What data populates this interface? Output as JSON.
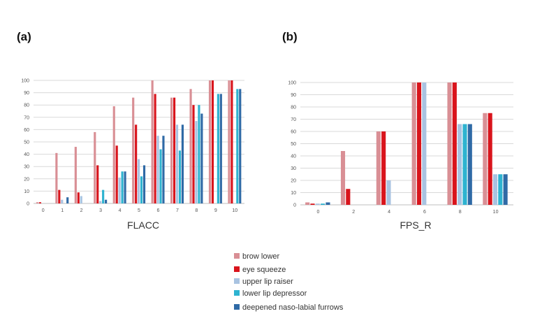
{
  "panel_labels": [
    "(a)",
    "(b)"
  ],
  "legend": {
    "items": [
      {
        "label": "brow lower",
        "color": "#d98f95"
      },
      {
        "label": "eye squeeze",
        "color": "#d9141c"
      },
      {
        "label": "upper lip raiser",
        "color": "#a9c3e1"
      },
      {
        "label": "lower lip depressor",
        "color": "#2eb3d0"
      },
      {
        "label": "deepened naso-labial furrows",
        "color": "#2f6aa6"
      }
    ]
  },
  "chart_data": [
    {
      "type": "bar",
      "title": "",
      "xlabel": "FLACC",
      "ylabel": "",
      "ylim": [
        0,
        100
      ],
      "yticks": [
        0,
        10,
        20,
        30,
        40,
        50,
        60,
        70,
        80,
        90,
        100
      ],
      "grid": true,
      "categories": [
        "0",
        "1",
        "2",
        "3",
        "4",
        "5",
        "6",
        "7",
        "8",
        "9",
        "10"
      ],
      "series": [
        {
          "name": "brow lower",
          "values": [
            1,
            41,
            46,
            58,
            79,
            86,
            100,
            86,
            93,
            100,
            100
          ]
        },
        {
          "name": "eye squeeze",
          "values": [
            1,
            11,
            9,
            31,
            47,
            64,
            89,
            86,
            80,
            100,
            100
          ]
        },
        {
          "name": "upper lip raiser",
          "values": [
            0,
            3,
            6,
            2,
            21,
            36,
            55,
            64,
            67,
            0,
            0
          ]
        },
        {
          "name": "lower lip depressor",
          "values": [
            0,
            0,
            0,
            11,
            26,
            22,
            44,
            43,
            80,
            89,
            93
          ]
        },
        {
          "name": "deepened naso-labial furrows",
          "values": [
            0,
            5,
            0,
            3,
            26,
            31,
            55,
            64,
            73,
            89,
            93
          ]
        }
      ]
    },
    {
      "type": "bar",
      "title": "",
      "xlabel": "FPS_R",
      "ylabel": "",
      "ylim": [
        0,
        100
      ],
      "yticks": [
        0,
        10,
        20,
        30,
        40,
        50,
        60,
        70,
        80,
        90,
        100
      ],
      "grid": true,
      "categories": [
        "0",
        "2",
        "4",
        "6",
        "8",
        "10"
      ],
      "series": [
        {
          "name": "brow lower",
          "values": [
            2,
            44,
            60,
            100,
            100,
            75
          ]
        },
        {
          "name": "eye squeeze",
          "values": [
            1,
            13,
            60,
            100,
            100,
            75
          ]
        },
        {
          "name": "upper lip raiser",
          "values": [
            1,
            0,
            20,
            100,
            66,
            25
          ]
        },
        {
          "name": "lower lip depressor",
          "values": [
            1,
            0,
            0,
            0,
            66,
            25
          ]
        },
        {
          "name": "deepened naso-labial furrows",
          "values": [
            2,
            0,
            0,
            0,
            66,
            25
          ]
        }
      ]
    }
  ]
}
